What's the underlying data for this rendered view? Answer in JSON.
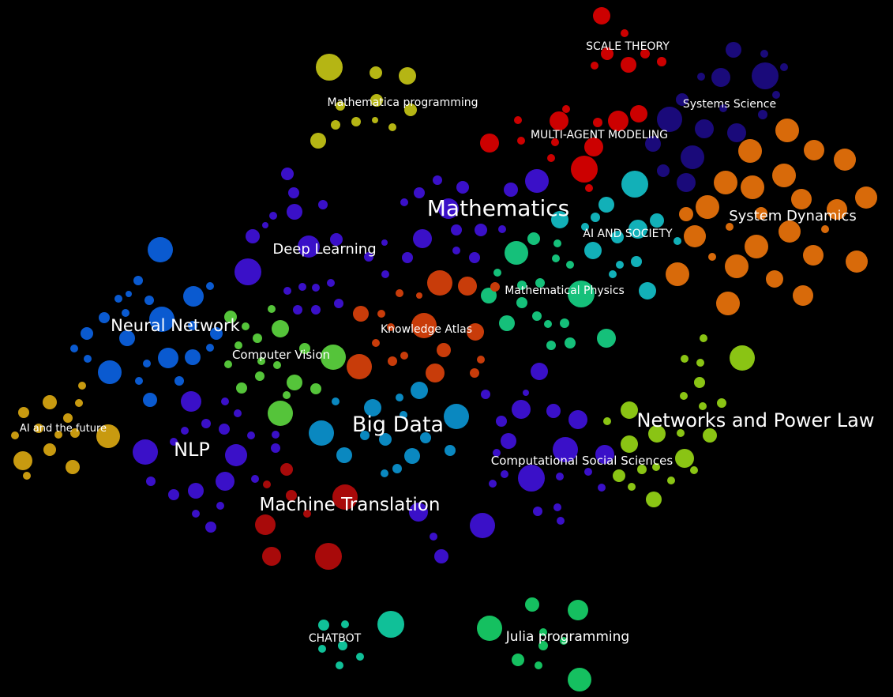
{
  "labels": {
    "scale_theory": "SCALE THEORY",
    "mathematica_programming": "Mathematica programming",
    "systems_science": "Systems Science",
    "multi_agent_modeling": "MULTI-AGENT MODELING",
    "mathematics": "Mathematics",
    "system_dynamics": "System Dynamics",
    "ai_and_society": "AI AND SOCIETY",
    "deep_learning": "Deep Learning",
    "mathematical_physics": "Mathematical Physics",
    "neural_network": "Neural Network",
    "knowledge_atlas": "Knowledge Atlas",
    "computer_vision": "Computer Vision",
    "ai_and_the_future": "AI and the future",
    "big_data": "Big Data",
    "networks_and_power_law": "Networks and Power Law",
    "nlp": "NLP",
    "computational_social_sciences": "Computational Social Sciences",
    "machine_translation": "Machine Translation",
    "chatbot": "CHATBOT",
    "julia_programming": "Julia programming"
  },
  "colors": {
    "background": "#000000",
    "label": "#ffffff",
    "scale_theory": "#cc0000",
    "mathematica_programming": "#b5b514",
    "systems_science": "#1a0a7a",
    "system_dynamics": "#d86a0a",
    "mathematics": "#3a10c8",
    "ai_and_society": "#12b0b8",
    "mathematical_physics": "#15c07a",
    "neural_network": "#0a5ad0",
    "knowledge_atlas": "#c83c0a",
    "computer_vision": "#55c43a",
    "ai_and_the_future": "#c89a10",
    "big_data": "#0a88c0",
    "networks_and_power_law": "#8ac414",
    "machine_translation": "#a80a0a",
    "chatbot": "#10c098",
    "julia_programming": "#15c060"
  }
}
